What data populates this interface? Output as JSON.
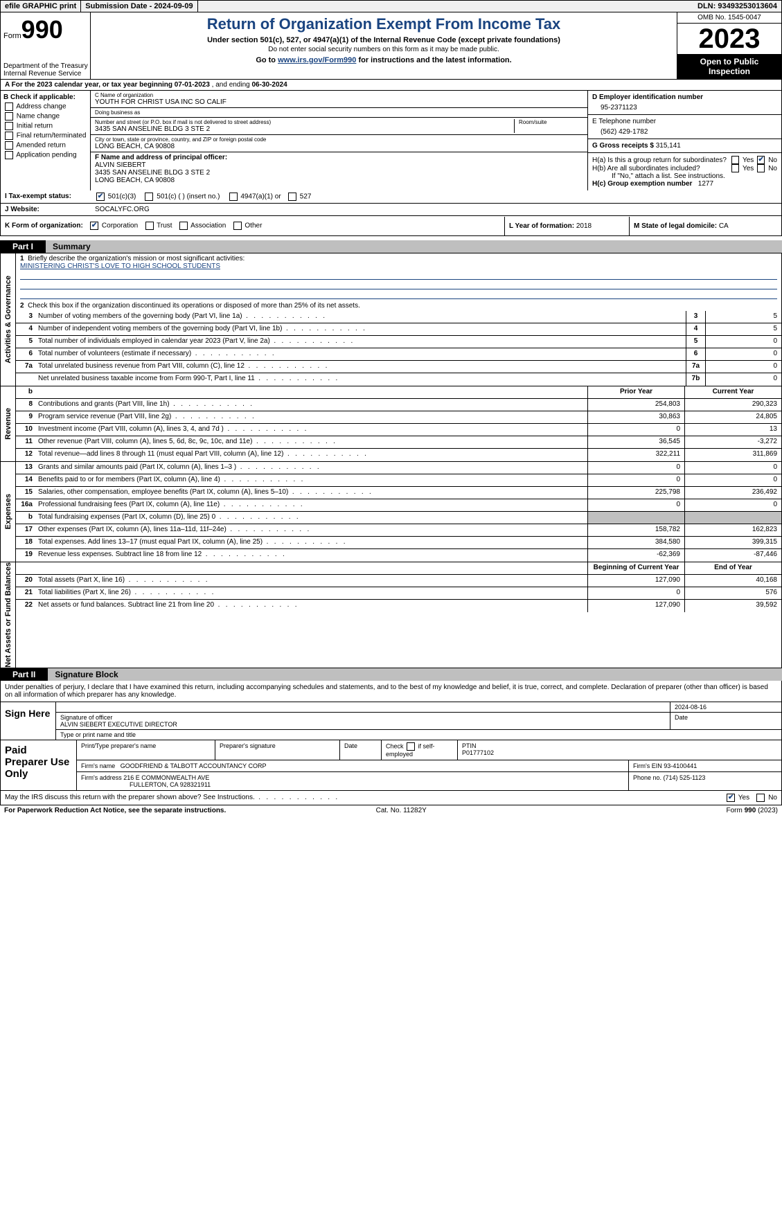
{
  "colors": {
    "brand": "#1a4480",
    "header_bg": "#f0f0f0",
    "part_bg": "#bfbfbf",
    "shaded": "#c0c0c0"
  },
  "topbar": {
    "efile": "efile GRAPHIC print",
    "submission_label": "Submission Date - 2024-09-09",
    "dln_label": "DLN: 93493253013604"
  },
  "header": {
    "form_word": "Form",
    "form_num": "990",
    "dept1": "Department of the Treasury",
    "dept2": "Internal Revenue Service",
    "title": "Return of Organization Exempt From Income Tax",
    "sub": "Under section 501(c), 527, or 4947(a)(1) of the Internal Revenue Code (except private foundations)",
    "note": "Do not enter social security numbers on this form as it may be made public.",
    "goto_pre": "Go to ",
    "goto_link": "www.irs.gov/Form990",
    "goto_post": " for instructions and the latest information.",
    "omb": "OMB No. 1545-0047",
    "year": "2023",
    "open": "Open to Public Inspection"
  },
  "row_a": {
    "text_pre": "A For the 2023 calendar year, or tax year beginning ",
    "begin": "07-01-2023",
    "mid": "   , and ending ",
    "end": "06-30-2024"
  },
  "col_b": {
    "header": "B Check if applicable:",
    "items": [
      "Address change",
      "Name change",
      "Initial return",
      "Final return/terminated",
      "Amended return",
      "Application pending"
    ]
  },
  "col_c": {
    "name_lbl": "C Name of organization",
    "name": "YOUTH FOR CHRIST USA INC SO CALIF",
    "dba_lbl": "Doing business as",
    "dba": "",
    "street_lbl": "Number and street (or P.O. box if mail is not delivered to street address)",
    "street": "3435 SAN ANSELINE BLDG 3 STE 2",
    "room_lbl": "Room/suite",
    "room": "",
    "city_lbl": "City or town, state or province, country, and ZIP or foreign postal code",
    "city": "LONG BEACH, CA  90808",
    "officer_lbl": "F  Name and address of principal officer:",
    "officer_name": "ALVIN SIEBERT",
    "officer_addr1": "3435 SAN ANSELINE BLDG 3 STE 2",
    "officer_addr2": "LONG BEACH, CA  90808"
  },
  "col_d": {
    "ein_lbl": "D Employer identification number",
    "ein": "95-2371123",
    "phone_lbl": "E Telephone number",
    "phone": "(562) 429-1782",
    "gross_lbl": "G Gross receipts $ ",
    "gross": "315,141",
    "ha": "H(a)  Is this a group return for subordinates?",
    "hb": "H(b)  Are all subordinates included?",
    "hb_note": "If \"No,\" attach a list. See instructions.",
    "hc_lbl": "H(c)  Group exemption number  ",
    "hc_val": "1277",
    "yes": "Yes",
    "no": "No"
  },
  "tax_exempt": {
    "i_label": "I   Tax-exempt status:",
    "opt1": "501(c)(3)",
    "opt2": "501(c) (  ) (insert no.)",
    "opt3": "4947(a)(1) or",
    "opt4": "527"
  },
  "website": {
    "j_label": "J   Website: ",
    "value": "SOCALYFC.ORG"
  },
  "k_row": {
    "label": "K Form of organization:",
    "opts": [
      "Corporation",
      "Trust",
      "Association",
      "Other"
    ],
    "l_label": "L Year of formation: ",
    "l_val": "2018",
    "m_label": "M State of legal domicile: ",
    "m_val": "CA"
  },
  "part1": {
    "num": "Part I",
    "title": "Summary"
  },
  "ag": {
    "vlabel": "Activities & Governance",
    "l1": "Briefly describe the organization's mission or most significant activities:",
    "l1_val": "MINISTERING CHRIST'S LOVE TO HIGH SCHOOL STUDENTS",
    "l2": "Check this box      if the organization discontinued its operations or disposed of more than 25% of its net assets.",
    "rows": [
      {
        "n": "3",
        "t": "Number of voting members of the governing body (Part VI, line 1a)",
        "r": "3",
        "v": "5"
      },
      {
        "n": "4",
        "t": "Number of independent voting members of the governing body (Part VI, line 1b)",
        "r": "4",
        "v": "5"
      },
      {
        "n": "5",
        "t": "Total number of individuals employed in calendar year 2023 (Part V, line 2a)",
        "r": "5",
        "v": "0"
      },
      {
        "n": "6",
        "t": "Total number of volunteers (estimate if necessary)",
        "r": "6",
        "v": "0"
      },
      {
        "n": "7a",
        "t": "Total unrelated business revenue from Part VIII, column (C), line 12",
        "r": "7a",
        "v": "0"
      },
      {
        "n": "",
        "t": "Net unrelated business taxable income from Form 990-T, Part I, line 11",
        "r": "7b",
        "v": "0"
      }
    ]
  },
  "rev": {
    "vlabel": "Revenue",
    "hdr_b": "b",
    "hdr_prior": "Prior Year",
    "hdr_curr": "Current Year",
    "rows": [
      {
        "n": "8",
        "t": "Contributions and grants (Part VIII, line 1h)",
        "c1": "254,803",
        "c2": "290,323"
      },
      {
        "n": "9",
        "t": "Program service revenue (Part VIII, line 2g)",
        "c1": "30,863",
        "c2": "24,805"
      },
      {
        "n": "10",
        "t": "Investment income (Part VIII, column (A), lines 3, 4, and 7d )",
        "c1": "0",
        "c2": "13"
      },
      {
        "n": "11",
        "t": "Other revenue (Part VIII, column (A), lines 5, 6d, 8c, 9c, 10c, and 11e)",
        "c1": "36,545",
        "c2": "-3,272"
      },
      {
        "n": "12",
        "t": "Total revenue—add lines 8 through 11 (must equal Part VIII, column (A), line 12)",
        "c1": "322,211",
        "c2": "311,869"
      }
    ]
  },
  "exp": {
    "vlabel": "Expenses",
    "rows": [
      {
        "n": "13",
        "t": "Grants and similar amounts paid (Part IX, column (A), lines 1–3 )",
        "c1": "0",
        "c2": "0"
      },
      {
        "n": "14",
        "t": "Benefits paid to or for members (Part IX, column (A), line 4)",
        "c1": "0",
        "c2": "0"
      },
      {
        "n": "15",
        "t": "Salaries, other compensation, employee benefits (Part IX, column (A), lines 5–10)",
        "c1": "225,798",
        "c2": "236,492"
      },
      {
        "n": "16a",
        "t": "Professional fundraising fees (Part IX, column (A), line 11e)",
        "c1": "0",
        "c2": "0"
      },
      {
        "n": "b",
        "t": "Total fundraising expenses (Part IX, column (D), line 25) 0",
        "c1": "",
        "c2": "",
        "shaded": true
      },
      {
        "n": "17",
        "t": "Other expenses (Part IX, column (A), lines 11a–11d, 11f–24e)",
        "c1": "158,782",
        "c2": "162,823"
      },
      {
        "n": "18",
        "t": "Total expenses. Add lines 13–17 (must equal Part IX, column (A), line 25)",
        "c1": "384,580",
        "c2": "399,315"
      },
      {
        "n": "19",
        "t": "Revenue less expenses. Subtract line 18 from line 12",
        "c1": "-62,369",
        "c2": "-87,446"
      }
    ]
  },
  "net": {
    "vlabel": "Net Assets or Fund Balances",
    "hdr1": "Beginning of Current Year",
    "hdr2": "End of Year",
    "rows": [
      {
        "n": "20",
        "t": "Total assets (Part X, line 16)",
        "c1": "127,090",
        "c2": "40,168"
      },
      {
        "n": "21",
        "t": "Total liabilities (Part X, line 26)",
        "c1": "0",
        "c2": "576"
      },
      {
        "n": "22",
        "t": "Net assets or fund balances. Subtract line 21 from line 20",
        "c1": "127,090",
        "c2": "39,592"
      }
    ]
  },
  "part2": {
    "num": "Part II",
    "title": "Signature Block"
  },
  "sig_note": "Under penalties of perjury, I declare that I have examined this return, including accompanying schedules and statements, and to the best of my knowledge and belief, it is true, correct, and complete. Declaration of preparer (other than officer) is based on all information of which preparer has any knowledge.",
  "sign": {
    "label": "Sign Here",
    "date": "2024-08-16",
    "sig_lbl": "Signature of officer",
    "date_lbl": "Date",
    "officer": "ALVIN SIEBERT EXECUTIVE DIRECTOR",
    "type_lbl": "Type or print name and title"
  },
  "preparer": {
    "label": "Paid Preparer Use Only",
    "h1": "Print/Type preparer's name",
    "h2": "Preparer's signature",
    "h3": "Date",
    "h4_pre": "Check",
    "h4_post": "if self-employed",
    "ptin_lbl": "PTIN",
    "ptin": "P01777102",
    "firm_lbl": "Firm's name   ",
    "firm": "GOODFRIEND & TALBOTT ACCOUNTANCY CORP",
    "ein_lbl": "Firm's EIN ",
    "ein": "93-4100441",
    "addr_lbl": "Firm's address ",
    "addr1": "216 E COMMONWEALTH AVE",
    "addr2": "FULLERTON, CA  928321911",
    "phone_lbl": "Phone no. ",
    "phone": "(714) 525-1123"
  },
  "discuss": {
    "text": "May the IRS discuss this return with the preparer shown above? See Instructions.",
    "yes": "Yes",
    "no": "No"
  },
  "footer": {
    "left": "For Paperwork Reduction Act Notice, see the separate instructions.",
    "mid": "Cat. No. 11282Y",
    "right_pre": "Form ",
    "right_b": "990",
    "right_post": " (2023)"
  }
}
